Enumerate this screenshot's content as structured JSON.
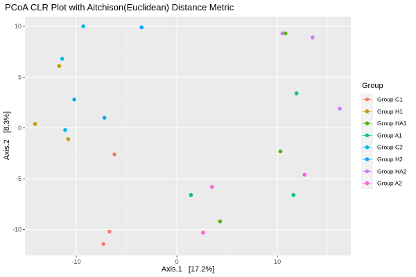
{
  "chart_data": {
    "type": "scatter",
    "title": "PCoA CLR Plot with Aitchison(Euclidean) Distance Metric",
    "xlabel": "Axis.1   [17.2%]",
    "ylabel": "Axis.2   [8.3%]",
    "xlim": [
      -15.1,
      17.3
    ],
    "ylim": [
      -12.55,
      10.95
    ],
    "x_ticks": [
      -10,
      0,
      10
    ],
    "y_ticks": [
      -10,
      -5,
      0,
      5,
      10
    ],
    "grid": true,
    "legend_title": "Group",
    "legend_position": "right",
    "series": [
      {
        "name": "Group C1",
        "color": "#F8766D",
        "points": [
          [
            -6.2,
            -2.6
          ],
          [
            -6.7,
            -10.2
          ],
          [
            -7.3,
            -11.4
          ]
        ]
      },
      {
        "name": "Group H1",
        "color": "#C49A00",
        "points": [
          [
            -11.7,
            6.1
          ],
          [
            -14.1,
            0.4
          ],
          [
            -10.8,
            -1.1
          ]
        ]
      },
      {
        "name": "Group HA1",
        "color": "#53B400",
        "points": [
          [
            10.8,
            9.3
          ],
          [
            10.3,
            -2.3
          ],
          [
            4.3,
            -9.2
          ]
        ]
      },
      {
        "name": "Group A1",
        "color": "#00C094",
        "points": [
          [
            11.9,
            3.4
          ],
          [
            11.6,
            -6.6
          ],
          [
            1.4,
            -6.6
          ]
        ]
      },
      {
        "name": "Group C2",
        "color": "#00B6EB",
        "points": [
          [
            -9.3,
            10.0
          ],
          [
            -11.4,
            6.8
          ],
          [
            -11.1,
            -0.2
          ]
        ]
      },
      {
        "name": "Group H2",
        "color": "#06A4FF",
        "points": [
          [
            -3.5,
            9.9
          ],
          [
            -10.2,
            2.8
          ],
          [
            -7.2,
            1.0
          ]
        ]
      },
      {
        "name": "Group HA2",
        "color": "#C77CFF",
        "points": [
          [
            10.5,
            9.3
          ],
          [
            13.5,
            8.9
          ],
          [
            16.2,
            1.9
          ]
        ]
      },
      {
        "name": "Group A2",
        "color": "#FB61D7",
        "points": [
          [
            12.7,
            -4.6
          ],
          [
            3.5,
            -5.8
          ],
          [
            2.6,
            -10.3
          ]
        ]
      }
    ]
  }
}
